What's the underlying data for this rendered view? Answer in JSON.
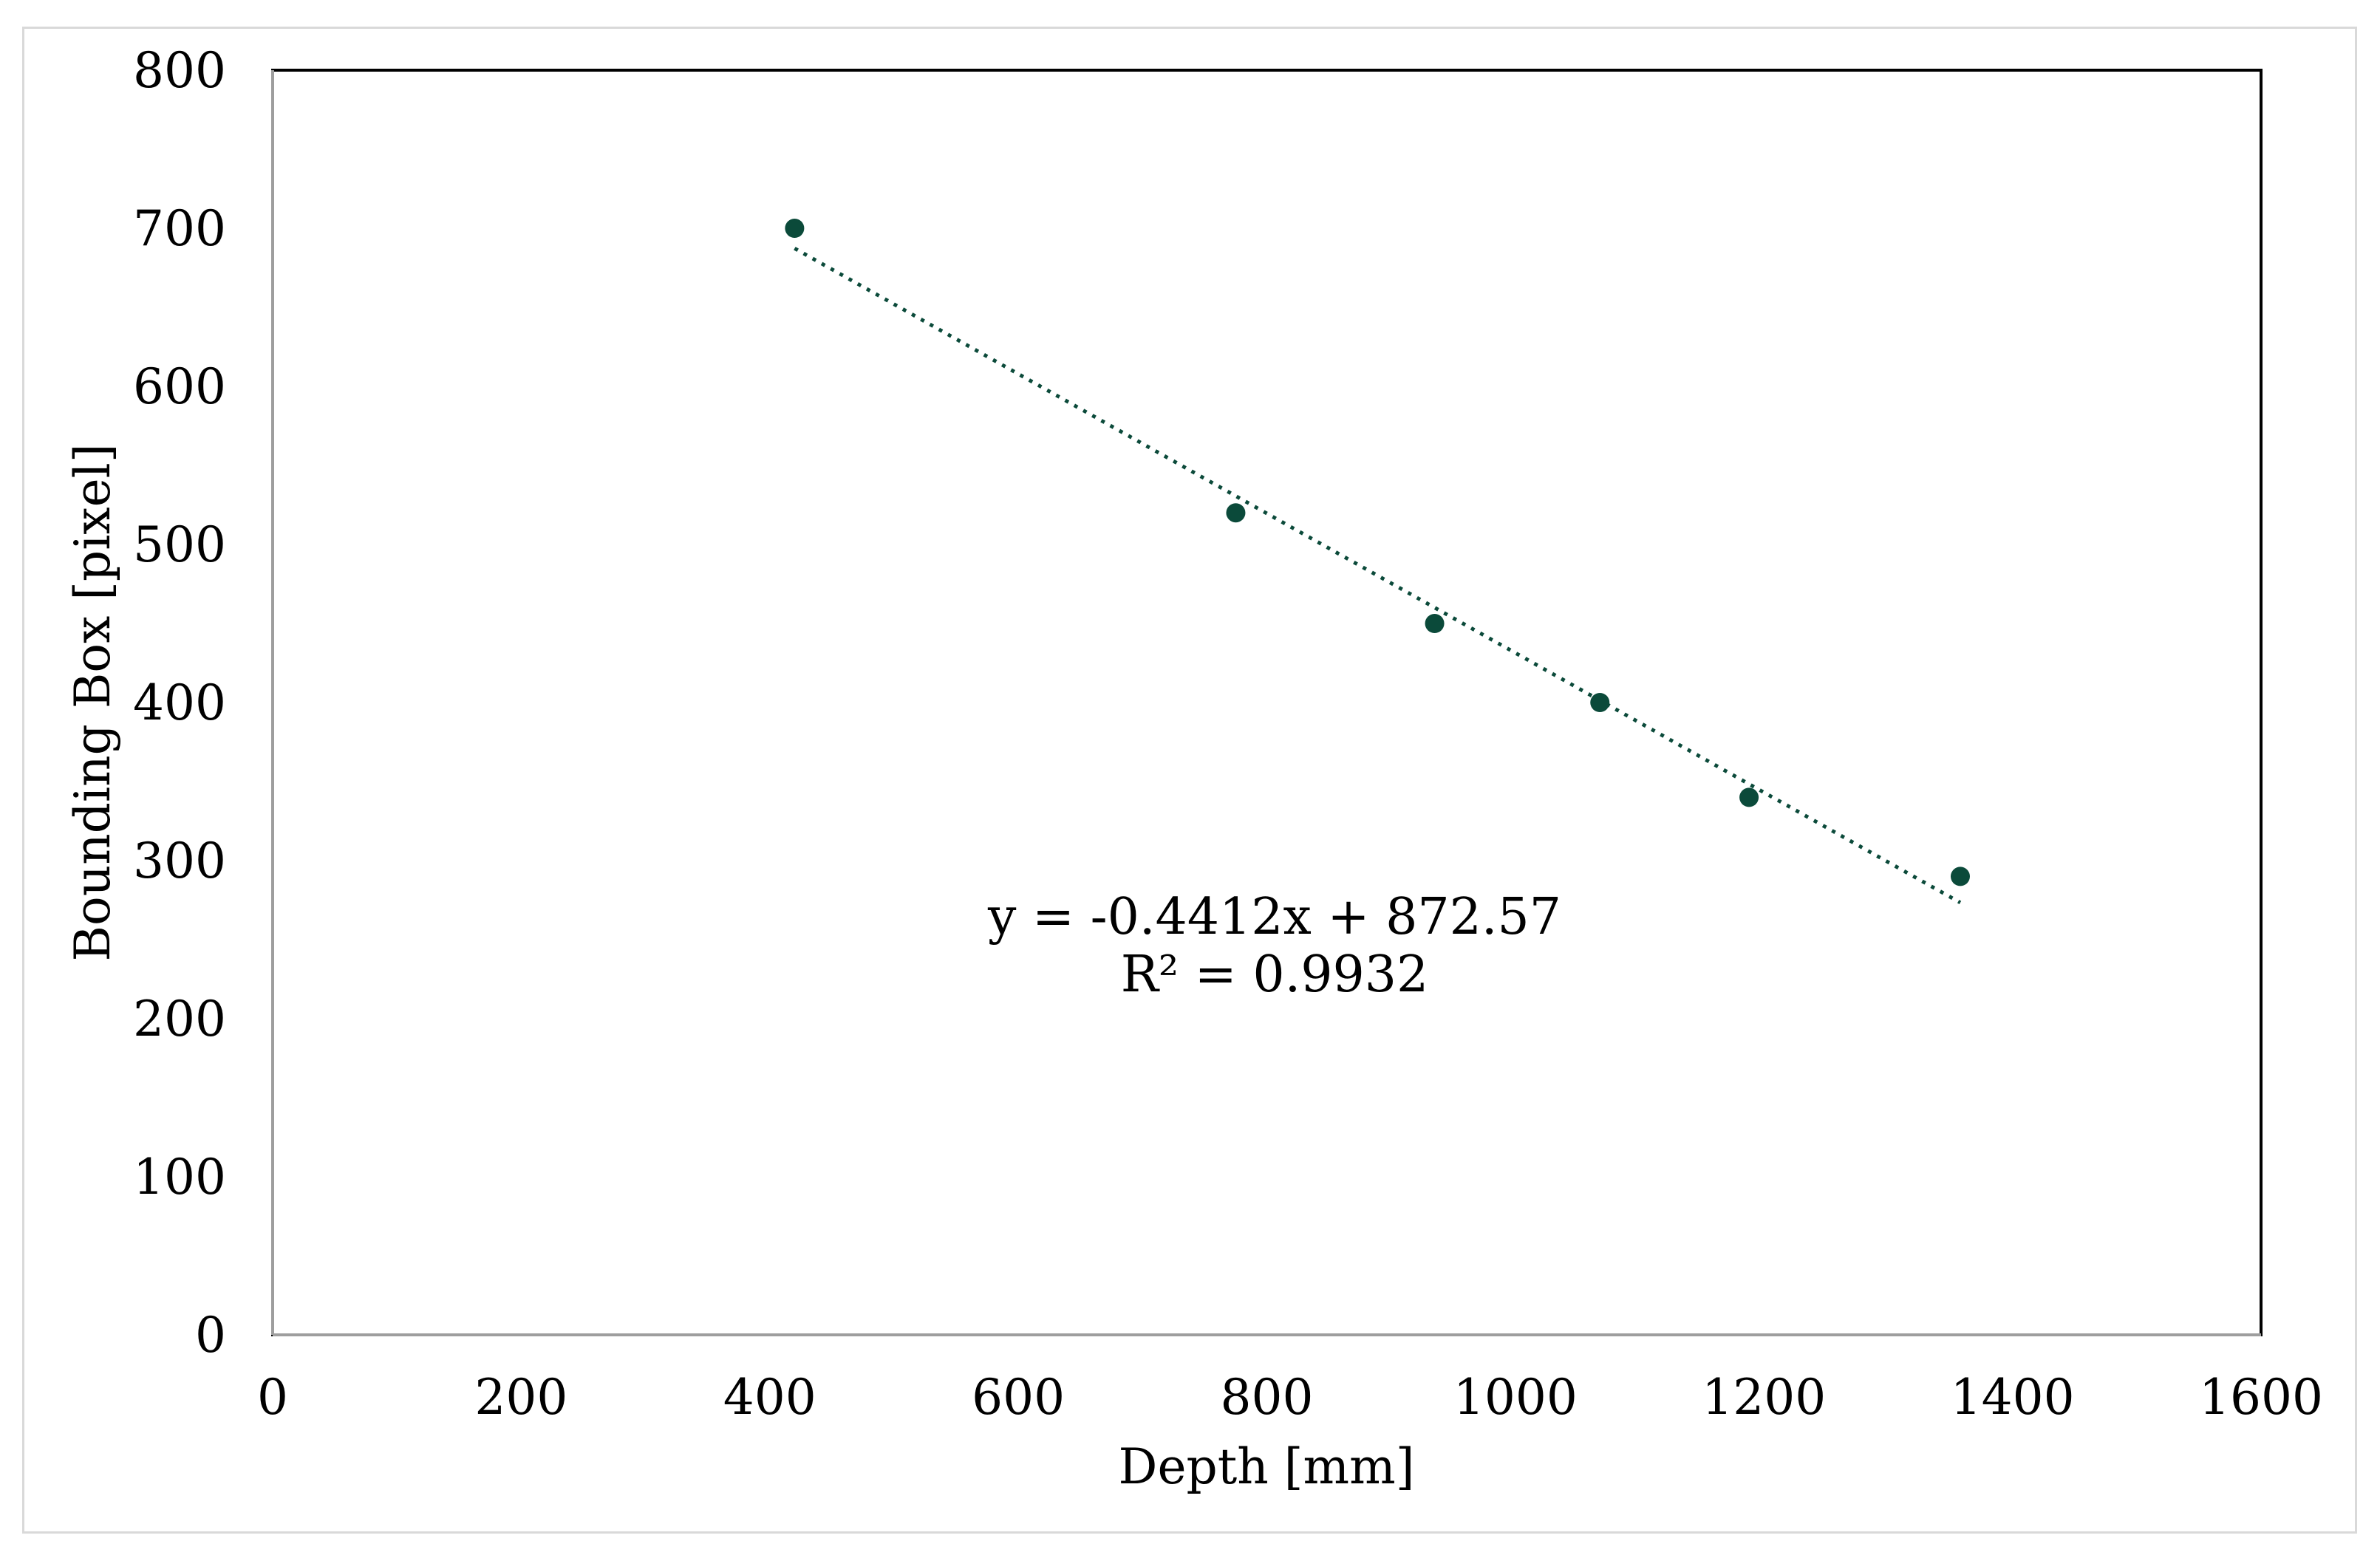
{
  "chart_data": {
    "type": "scatter",
    "title": "",
    "xlabel": "Depth [mm]",
    "ylabel": "Bounding Box [pixel]",
    "xlim": [
      0,
      1600
    ],
    "ylim": [
      0,
      800
    ],
    "x_ticks": [
      "0",
      "200",
      "400",
      "600",
      "800",
      "1000",
      "1200",
      "1400",
      "1600"
    ],
    "y_ticks": [
      "0",
      "100",
      "200",
      "300",
      "400",
      "500",
      "600",
      "700",
      "800"
    ],
    "grid": false,
    "legend": "none",
    "series": [
      {
        "x": [
          420,
          775,
          935,
          1068,
          1188,
          1358
        ],
        "y": [
          700,
          520,
          450,
          400,
          340,
          290
        ],
        "color": "#0b4a3a"
      }
    ],
    "trendline": {
      "type": "linear",
      "slope": -0.4412,
      "intercept": 872.57,
      "x_range": [
        420,
        1358
      ],
      "style": "dotted",
      "color": "#0b4a3a"
    },
    "annotations": {
      "equation": "y = -0.4412x + 872.57",
      "r_squared": "R² = 0.9932"
    }
  }
}
